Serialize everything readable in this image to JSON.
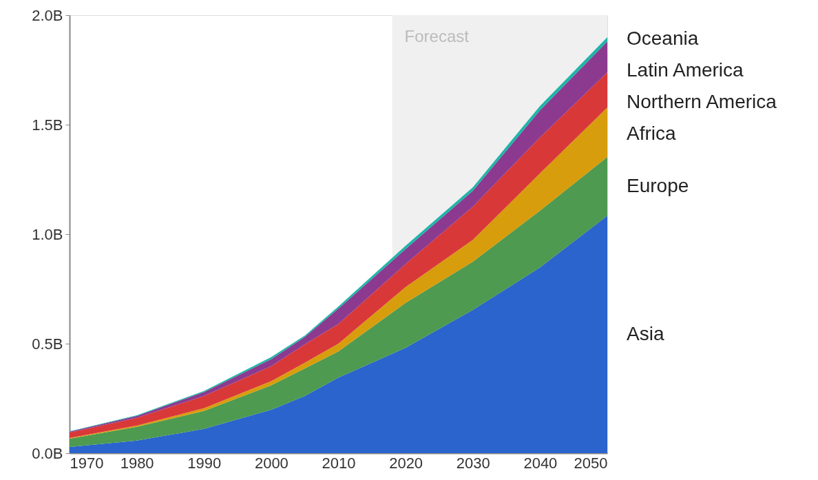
{
  "chart_data": {
    "type": "area",
    "stacked": true,
    "x": [
      1970,
      1980,
      1990,
      2000,
      2005,
      2010,
      2020,
      2030,
      2040,
      2050
    ],
    "series": [
      {
        "name": "Asia",
        "color": "#2a64cc",
        "values": [
          0.028,
          0.057,
          0.111,
          0.198,
          0.261,
          0.345,
          0.481,
          0.654,
          0.848,
          1.084
        ]
      },
      {
        "name": "Europe",
        "color": "#4e9a50",
        "values": [
          0.038,
          0.063,
          0.082,
          0.112,
          0.126,
          0.12,
          0.205,
          0.22,
          0.26,
          0.268
        ]
      },
      {
        "name": "Africa",
        "color": "#d89d0d",
        "values": [
          0.003,
          0.006,
          0.012,
          0.019,
          0.026,
          0.035,
          0.073,
          0.1,
          0.17,
          0.227
        ]
      },
      {
        "name": "Northern America",
        "color": "#d93838",
        "values": [
          0.025,
          0.035,
          0.056,
          0.068,
          0.084,
          0.09,
          0.105,
          0.152,
          0.165,
          0.16
        ]
      },
      {
        "name": "Latin America",
        "color": "#8b3a90",
        "values": [
          0.004,
          0.009,
          0.018,
          0.032,
          0.034,
          0.07,
          0.068,
          0.072,
          0.123,
          0.141
        ]
      },
      {
        "name": "Oceania",
        "color": "#1fb5a8",
        "values": [
          0.002,
          0.003,
          0.005,
          0.01,
          0.006,
          0.01,
          0.015,
          0.016,
          0.02,
          0.019
        ]
      }
    ],
    "xlim": [
      1970,
      2050
    ],
    "xticks": [
      1970,
      1980,
      1990,
      2000,
      2010,
      2020,
      2030,
      2040,
      2050
    ],
    "ylim": [
      0,
      2.0
    ],
    "yticks": [
      {
        "value": 0,
        "label": "0.0B"
      },
      {
        "value": 0.5,
        "label": "0.5B"
      },
      {
        "value": 1.0,
        "label": "1.0B"
      },
      {
        "value": 1.5,
        "label": "1.5B"
      },
      {
        "value": 2.0,
        "label": "2.0B"
      }
    ],
    "bands": [
      {
        "axis": "x",
        "from": 2018,
        "to": 2050,
        "label": "Forecast",
        "color": "#f0f0f0"
      }
    ],
    "grid": false,
    "legend": false
  }
}
